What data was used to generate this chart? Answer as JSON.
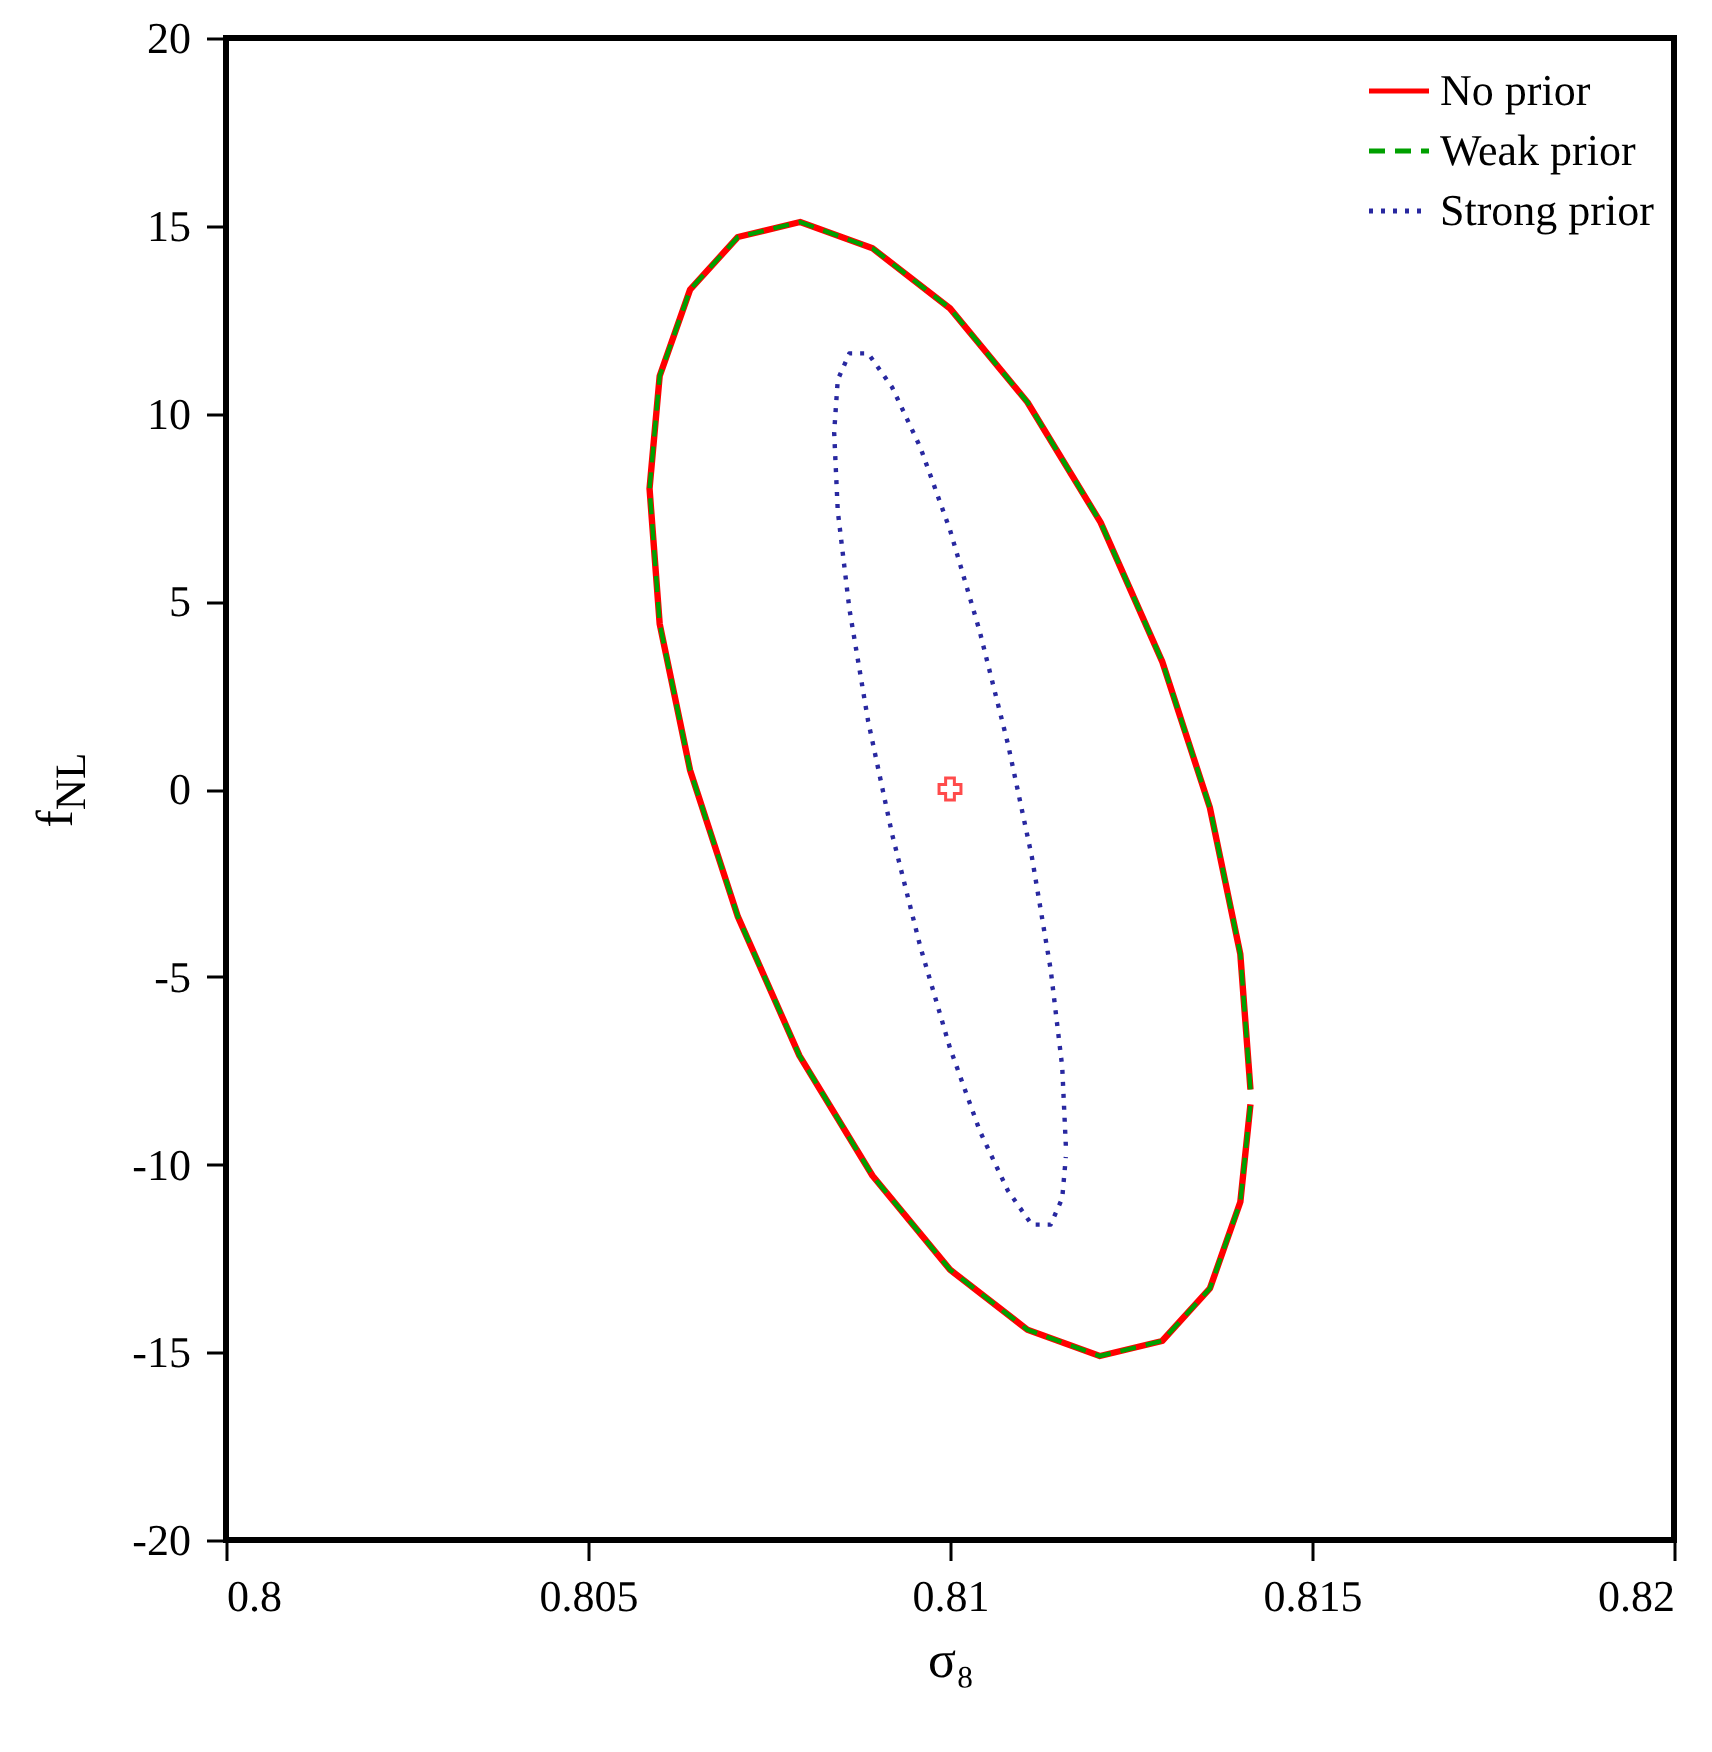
{
  "chart_data": {
    "type": "line",
    "xlabel": "σ₈",
    "ylabel": "f$_{NL}$",
    "xlim": [
      0.8,
      0.82
    ],
    "ylim": [
      -20,
      20
    ],
    "xticks": [
      0.8,
      0.805,
      0.81,
      0.815,
      0.82
    ],
    "yticks": [
      -20,
      -15,
      -10,
      -5,
      0,
      5,
      10,
      15,
      20
    ],
    "grid": false,
    "legend": "top right",
    "series": [
      {
        "name": "No prior",
        "color": "#ff0000",
        "line_style": "solid",
        "x": [
          0.81415,
          0.81401,
          0.81359,
          0.81293,
          0.81208,
          0.81107,
          0.81,
          0.80893,
          0.80793,
          0.80707,
          0.80641,
          0.80599,
          0.80585,
          0.80599,
          0.80641,
          0.80707,
          0.80792,
          0.80893,
          0.81,
          0.81107,
          0.81207,
          0.81293,
          0.81359,
          0.81401,
          0.81415
        ],
        "values": [
          -8.0,
          -4.4,
          -0.5,
          3.4,
          7.1,
          10.3,
          12.8,
          14.4,
          15.1,
          14.7,
          13.3,
          11.0,
          8.0,
          4.4,
          0.5,
          -3.4,
          -7.1,
          -10.3,
          -12.8,
          -14.4,
          -15.1,
          -14.7,
          -13.3,
          -11.0,
          -8.4
        ]
      },
      {
        "name": "Weak prior",
        "color": "#00a000",
        "line_style": "dashed",
        "x": [
          0.81415,
          0.81401,
          0.81359,
          0.81293,
          0.81208,
          0.81107,
          0.81,
          0.80893,
          0.80793,
          0.80707,
          0.80641,
          0.80599,
          0.80585,
          0.80599,
          0.80641,
          0.80707,
          0.80792,
          0.80893,
          0.81,
          0.81107,
          0.81207,
          0.81293,
          0.81359,
          0.81401,
          0.81415
        ],
        "values": [
          -8.0,
          -4.4,
          -0.5,
          3.4,
          7.1,
          10.3,
          12.8,
          14.4,
          15.1,
          14.7,
          13.3,
          11.0,
          8.0,
          4.4,
          0.5,
          -3.4,
          -7.1,
          -10.3,
          -12.8,
          -14.4,
          -15.1,
          -14.7,
          -13.3,
          -11.0,
          -8.4
        ]
      },
      {
        "name": "Strong prior",
        "color": "#2828a0",
        "line_style": "dotted",
        "x": [
          0.8116,
          0.81155,
          0.81139,
          0.81113,
          0.8108,
          0.81041,
          0.81,
          0.80959,
          0.8092,
          0.80887,
          0.80861,
          0.80845,
          0.8084,
          0.80845,
          0.80861,
          0.80887,
          0.8092,
          0.80959,
          0.81,
          0.81041,
          0.8108,
          0.81113,
          0.81139,
          0.81155,
          0.8116
        ],
        "values": [
          -9.5,
          -7.4,
          -4.8,
          -1.8,
          1.2,
          4.2,
          6.9,
          9.1,
          10.7,
          11.6,
          11.6,
          10.9,
          9.5,
          7.4,
          4.8,
          1.8,
          -1.2,
          -4.2,
          -6.9,
          -9.1,
          -10.7,
          -11.6,
          -11.6,
          -10.9,
          -9.8
        ]
      },
      {
        "type": "scatter",
        "color": "#ff0000",
        "marker": "cross",
        "x": [
          0.81
        ],
        "values": [
          0
        ]
      }
    ]
  }
}
